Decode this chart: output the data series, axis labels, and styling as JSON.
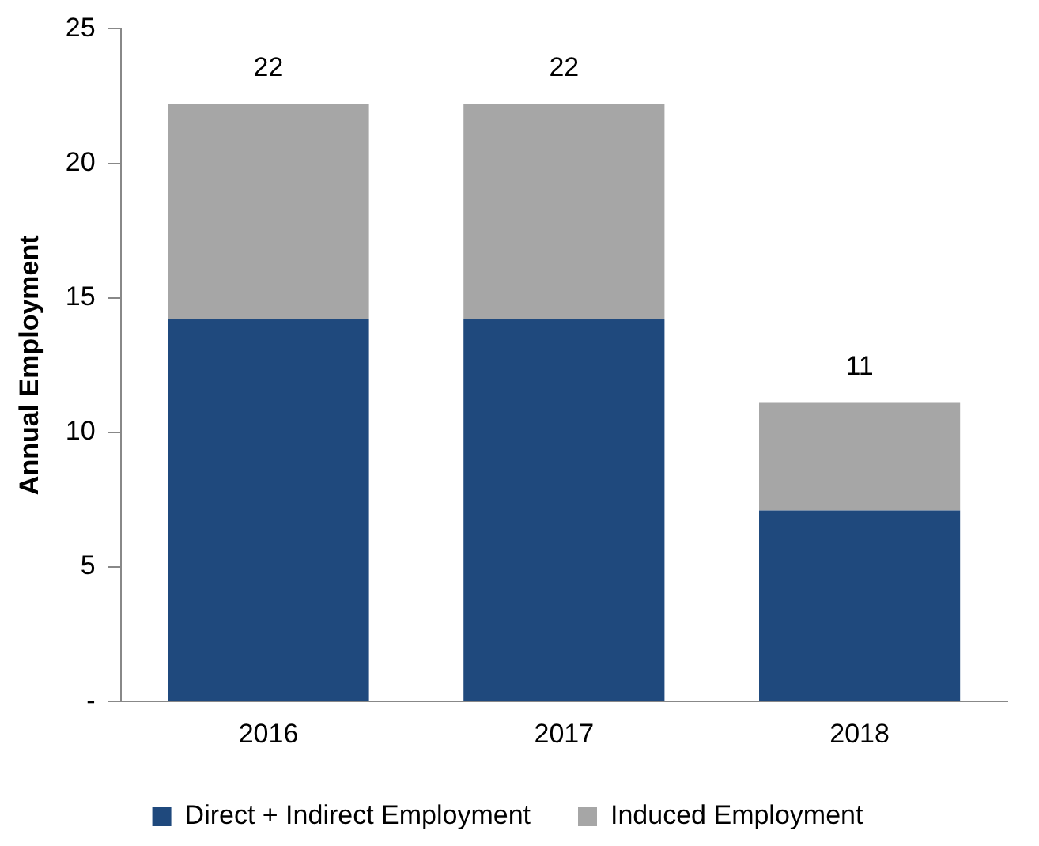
{
  "chart_data": {
    "type": "bar",
    "stacked": true,
    "ylabel": "Annual Employment",
    "categories": [
      "2016",
      "2017",
      "2018"
    ],
    "series": [
      {
        "name": "Direct + Indirect Employment",
        "color": "#1f497d",
        "values": [
          14.2,
          14.2,
          7.1
        ]
      },
      {
        "name": "Induced Employment",
        "color": "#a6a6a6",
        "values": [
          8.0,
          8.0,
          4.0
        ]
      }
    ],
    "ylim": [
      0,
      25
    ],
    "yticks": [
      {
        "value": 0,
        "label": "-"
      },
      5,
      10,
      15,
      20,
      25
    ],
    "grid": false,
    "legend": "bottom",
    "totals": [
      "22",
      "22",
      "11"
    ]
  }
}
